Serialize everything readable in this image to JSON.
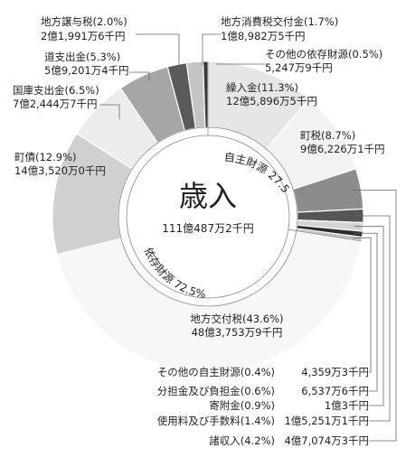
{
  "chart_data": {
    "type": "pie",
    "title": "",
    "center_label": "歳入",
    "center_value": "111億487万2千円",
    "groups": [
      {
        "label": "自主財源 27.5%"
      },
      {
        "label": "依存財源 72.5%"
      }
    ],
    "slices": [
      {
        "name": "繰入金",
        "percent": 11.3,
        "pct_label": "(11.3%)",
        "amount": "12億5,896万5千円",
        "group": "自主財源",
        "color": "#e6e6e6"
      },
      {
        "name": "町税",
        "percent": 8.7,
        "pct_label": "(8.7%)",
        "amount": "9億6,226万1千円",
        "group": "自主財源",
        "color": "#f2f2f2"
      },
      {
        "name": "諸収入",
        "percent": 4.2,
        "pct_label": "(4.2%)",
        "amount": "4億7,074万3千円",
        "group": "自主財源",
        "color": "#8c8c8c"
      },
      {
        "name": "使用料及び手数料",
        "percent": 1.4,
        "pct_label": "(1.4%)",
        "amount": "1億5,251万1千円",
        "group": "自主財源",
        "color": "#555555"
      },
      {
        "name": "寄附金",
        "percent": 0.9,
        "pct_label": "(0.9%)",
        "amount": "1億3千円",
        "group": "自主財源",
        "color": "#d4d4d4"
      },
      {
        "name": "分担金及び負担金",
        "percent": 0.6,
        "pct_label": "(0.6%)",
        "amount": "6,537万6千円",
        "group": "自主財源",
        "color": "#2e2e2e"
      },
      {
        "name": "その他の自主財源",
        "percent": 0.4,
        "pct_label": "(0.4%)",
        "amount": "4,359万3千円",
        "group": "自主財源",
        "color": "#bdbdbd"
      },
      {
        "name": "地方交付税",
        "percent": 43.6,
        "pct_label": "(43.6%)",
        "amount": "48億3,753万9千円",
        "group": "依存財源",
        "color": "#f7f7f7"
      },
      {
        "name": "町債",
        "percent": 12.9,
        "pct_label": "(12.9%)",
        "amount": "14億3,520万0千円",
        "group": "依存財源",
        "color": "#d0d0d0"
      },
      {
        "name": "国庫支出金",
        "percent": 6.5,
        "pct_label": "(6.5%)",
        "amount": "7億2,444万7千円",
        "group": "依存財源",
        "color": "#ececec"
      },
      {
        "name": "道支出金",
        "percent": 5.3,
        "pct_label": "(5.3%)",
        "amount": "5億9,201万4千円",
        "group": "依存財源",
        "color": "#a6a6a6"
      },
      {
        "name": "地方譲与税",
        "percent": 2.0,
        "pct_label": "(2.0%)",
        "amount": "2億1,991万6千円",
        "group": "依存財源",
        "color": "#5a5a5a"
      },
      {
        "name": "地方消費税交付金",
        "percent": 1.7,
        "pct_label": "(1.7%)",
        "amount": "1億8,982万5千円",
        "group": "依存財源",
        "color": "#c4c4c4"
      },
      {
        "name": "その他の依存財源",
        "percent": 0.5,
        "pct_label": "(0.5%)",
        "amount": "5,247万9千円",
        "group": "依存財源",
        "color": "#3a3a3a"
      }
    ]
  }
}
